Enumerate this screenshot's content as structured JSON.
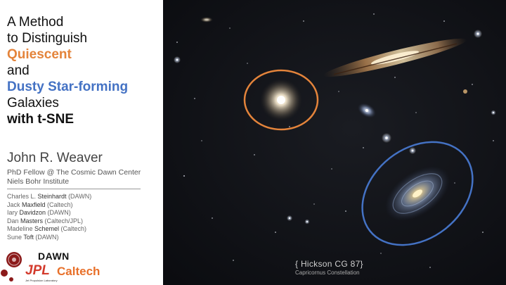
{
  "title": {
    "line1": "A Method",
    "line2": "to Distinguish",
    "highlight_quiescent": "Quiescent",
    "line_and": "and",
    "highlight_dusty": "Dusty Star-forming",
    "line_galaxies": "Galaxies",
    "line_tsne": "with t-SNE"
  },
  "author": {
    "name": "John R. Weaver",
    "role": "PhD Fellow @ The Cosmic Dawn Center",
    "institute": "Niels Bohr Institute"
  },
  "coauthors": [
    {
      "first": "Charles L. ",
      "last": "Steinhardt",
      "affil": " (DAWN)"
    },
    {
      "first": "Jack ",
      "last": "Maxfield",
      "affil": " (Caltech)"
    },
    {
      "first": "Iary ",
      "last": "Davidzon",
      "affil": " (DAWN)"
    },
    {
      "first": "Dan ",
      "last": "Masters",
      "affil": " (Caltech/JPL)"
    },
    {
      "first": "Madeline ",
      "last": "Schemel",
      "affil": " (Caltech)"
    },
    {
      "first": "Sune ",
      "last": "Toft",
      "affil": " (DAWN)"
    }
  ],
  "logos": {
    "dawn": "DAWN",
    "jpl": "JPL",
    "caltech": "Caltech",
    "jpl_sub": "Jet Propulsion Laboratory"
  },
  "image": {
    "caption": "{ Hickson CG 87}",
    "subcaption": "Capricornus Constellation"
  },
  "colors": {
    "orange": "#e4843b",
    "blue": "#4472c4",
    "jpl_red": "#d33a2c",
    "caltech_orange": "#e8702a"
  }
}
